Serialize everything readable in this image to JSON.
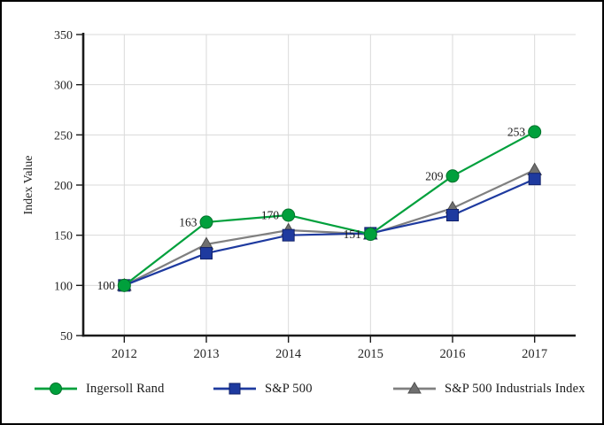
{
  "chart_data": {
    "type": "line",
    "title": "",
    "xlabel": "",
    "ylabel": "Index Value",
    "x": [
      "2012",
      "2013",
      "2014",
      "2015",
      "2016",
      "2017"
    ],
    "ylim": [
      50,
      350
    ],
    "ytick_step": 50,
    "ytick_labels": [
      "50",
      "100",
      "150",
      "200",
      "250",
      "300",
      "350"
    ],
    "grid": true,
    "legend_position": "bottom",
    "series": [
      {
        "name": "Ingersoll Rand",
        "marker": "circle",
        "color": "#00A03C",
        "edge_color": "#00732B",
        "line_color": "#00A03C",
        "values": [
          100,
          163,
          170,
          151,
          209,
          253
        ],
        "point_labels": [
          "100",
          "163",
          "170",
          "151",
          "209",
          "253"
        ]
      },
      {
        "name": "S&P 500",
        "marker": "square",
        "color": "#1E3A9F",
        "edge_color": "#12226B",
        "line_color": "#1E3A9F",
        "values": [
          100,
          132,
          150,
          152,
          170,
          206
        ],
        "point_labels": []
      },
      {
        "name": "S&P 500 Industrials Index",
        "marker": "triangle",
        "color": "#6F6F6F",
        "edge_color": "#4F4F4F",
        "line_color": "#808080",
        "values": [
          100,
          141,
          155,
          151,
          177,
          215
        ],
        "point_labels": []
      }
    ],
    "colors": {
      "grid": "#DADADA",
      "axis": "#1A1A1A",
      "tick_text": "#262626",
      "label_text": "#1A1A1A",
      "background": "#FFFFFF"
    }
  }
}
